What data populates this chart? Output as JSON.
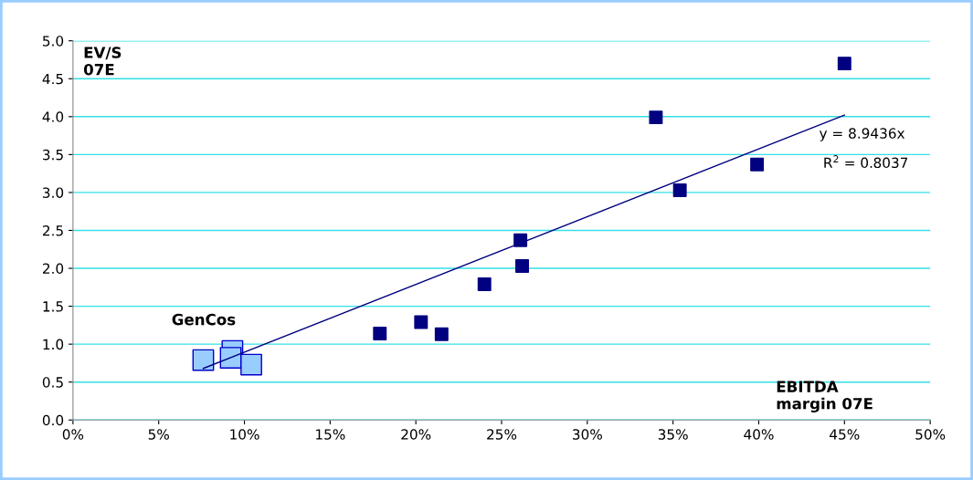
{
  "chart_data": {
    "type": "scatter",
    "marker": "square",
    "grid": "y",
    "xlim": [
      0,
      50
    ],
    "xticks": [
      {
        "value": 0,
        "label": "0%"
      },
      {
        "value": 5,
        "label": "5%"
      },
      {
        "value": 10,
        "label": "10%"
      },
      {
        "value": 15,
        "label": "15%"
      },
      {
        "value": 20,
        "label": "20%"
      },
      {
        "value": 25,
        "label": "25%"
      },
      {
        "value": 30,
        "label": "30%"
      },
      {
        "value": 35,
        "label": "35%"
      },
      {
        "value": 40,
        "label": "40%"
      },
      {
        "value": 45,
        "label": "45%"
      },
      {
        "value": 50,
        "label": "50%"
      }
    ],
    "ylim": [
      0,
      5
    ],
    "yticks": [
      {
        "value": 0,
        "label": "0.0"
      },
      {
        "value": 0.5,
        "label": "0.5"
      },
      {
        "value": 1,
        "label": "1.0"
      },
      {
        "value": 1.5,
        "label": "1.5"
      },
      {
        "value": 2,
        "label": "2.0"
      },
      {
        "value": 2.5,
        "label": "2.5"
      },
      {
        "value": 3,
        "label": "3.0"
      },
      {
        "value": 3.5,
        "label": "3.5"
      },
      {
        "value": 4,
        "label": "4.0"
      },
      {
        "value": 4.5,
        "label": "4.5"
      },
      {
        "value": 5,
        "label": "5.0"
      }
    ],
    "ylabel": "EV/S\n07E",
    "xlabel": "EBITDA\nmargin 07E",
    "series": [
      {
        "color": "#000080",
        "x": [
          45.0,
          34.0,
          39.9,
          35.4,
          26.1,
          26.2,
          24.0,
          20.3,
          17.9,
          21.5
        ],
        "values": [
          4.7,
          3.99,
          3.37,
          3.03,
          2.37,
          2.03,
          1.79,
          1.29,
          1.14,
          1.13
        ]
      },
      {
        "color": "#99ccff",
        "x": [
          7.6,
          9.3,
          9.2,
          10.4
        ],
        "values": [
          0.79,
          0.91,
          0.82,
          0.73
        ]
      },
      {
        "type": "line",
        "marker": "none",
        "color": "#000080",
        "x": [
          7.6,
          45.0
        ],
        "values": [
          0.68,
          4.02
        ]
      }
    ],
    "annotations": [
      {
        "text": "y = 8.9436x",
        "x": 45.0,
        "y": 4.02
      },
      "R$^{2}$ = 0.8037",
      {
        "text": "GenCos",
        "x": 9.3,
        "y": 0.91
      }
    ]
  }
}
